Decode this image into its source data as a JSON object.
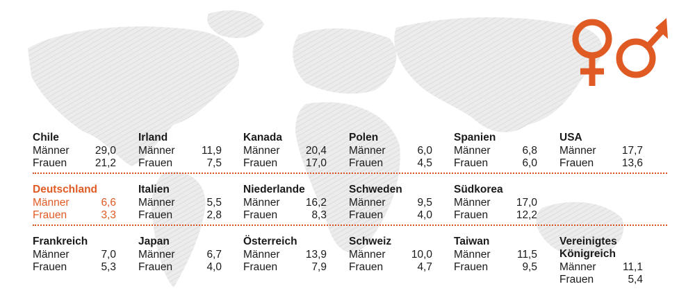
{
  "colors": {
    "accent": "#e05a23",
    "text": "#1a1a1a",
    "map": "#e8e8e8"
  },
  "icons": [
    "female-symbol-icon",
    "male-symbol-icon"
  ],
  "chart_data": {
    "type": "table",
    "columns": [
      "Männer",
      "Frauen"
    ],
    "rows": [
      [
        {
          "country": "Chile",
          "men": "29,0",
          "women": "21,2"
        },
        {
          "country": "Irland",
          "men": "11,9",
          "women": "7,5"
        },
        {
          "country": "Kanada",
          "men": "20,4",
          "women": "17,0"
        },
        {
          "country": "Polen",
          "men": "6,0",
          "women": "4,5"
        },
        {
          "country": "Spanien",
          "men": "6,8",
          "women": "6,0"
        },
        {
          "country": "USA",
          "men": "17,7",
          "women": "13,6"
        }
      ],
      [
        {
          "country": "Deutschland",
          "men": "6,6",
          "women": "3,3",
          "highlight": true
        },
        {
          "country": "Italien",
          "men": "5,5",
          "women": "2,8"
        },
        {
          "country": "Niederlande",
          "men": "16,2",
          "women": "8,3"
        },
        {
          "country": "Schweden",
          "men": "9,5",
          "women": "4,0"
        },
        {
          "country": "Südkorea",
          "men": "17,0",
          "women": "12,2"
        }
      ],
      [
        {
          "country": "Frankreich",
          "men": "7,0",
          "women": "5,3"
        },
        {
          "country": "Japan",
          "men": "6,7",
          "women": "4,0"
        },
        {
          "country": "Österreich",
          "men": "13,9",
          "women": "7,9"
        },
        {
          "country": "Schweiz",
          "men": "10,0",
          "women": "4,7"
        },
        {
          "country": "Taiwan",
          "men": "11,5",
          "women": "9,5"
        },
        {
          "country": "Vereinigtes Königreich",
          "men": "11,1",
          "women": "5,4"
        }
      ]
    ]
  }
}
